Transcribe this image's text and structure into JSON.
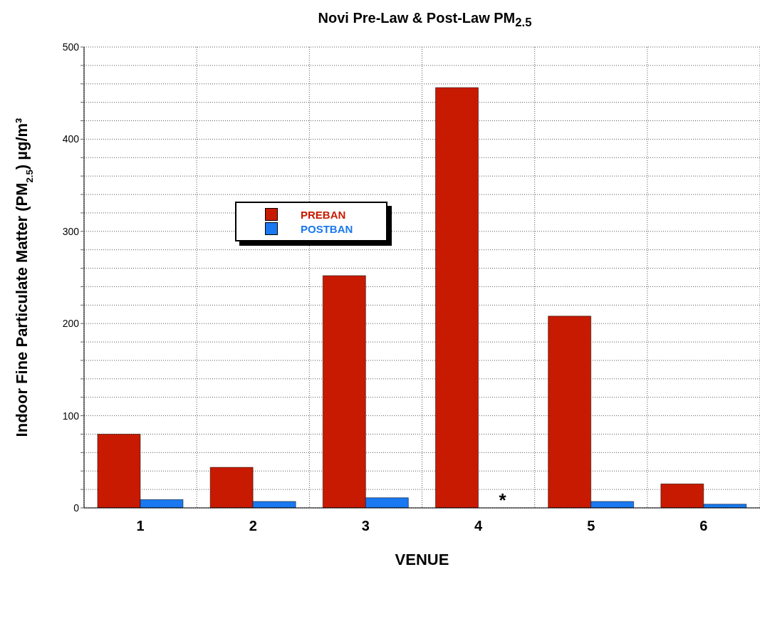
{
  "chart_data": {
    "type": "bar",
    "title": "Novi Pre-Law & Post-Law PM$_{2.5}$",
    "xlabel": "VENUE",
    "ylabel": "Indoor Fine Particulate Matter (PM$_{2.5}$) µg/m³",
    "categories": [
      "1",
      "2",
      "3",
      "4",
      "5",
      "6"
    ],
    "series": [
      {
        "name": "PREBAN",
        "color": "#c81a00",
        "values": [
          80,
          44,
          252,
          456,
          208,
          26
        ]
      },
      {
        "name": "POSTBAN",
        "color": "#1a78f0",
        "values": [
          9,
          7,
          11,
          null,
          7,
          4
        ]
      }
    ],
    "ylim": [
      0,
      500
    ],
    "yticks": [
      0,
      {
        "value": 20,
        "label": null
      },
      {
        "value": 40,
        "label": null
      },
      {
        "value": 60,
        "label": null
      },
      {
        "value": 80,
        "label": null
      },
      100,
      {
        "value": 120,
        "label": null
      },
      {
        "value": 140,
        "label": null
      },
      {
        "value": 160,
        "label": null
      },
      {
        "value": 180,
        "label": null
      },
      200,
      {
        "value": 220,
        "label": null
      },
      {
        "value": 240,
        "label": null
      },
      {
        "value": 260,
        "label": null
      },
      {
        "value": 280,
        "label": null
      },
      300,
      {
        "value": 320,
        "label": null
      },
      {
        "value": 340,
        "label": null
      },
      {
        "value": 360,
        "label": null
      },
      {
        "value": 380,
        "label": null
      },
      400,
      {
        "value": 420,
        "label": null
      },
      {
        "value": 440,
        "label": null
      },
      {
        "value": 460,
        "label": null
      },
      {
        "value": 480,
        "label": null
      },
      500
    ],
    "annotations": [
      {
        "text": "*",
        "x": "4",
        "y": 0
      }
    ],
    "grid": true,
    "legend": "left"
  }
}
